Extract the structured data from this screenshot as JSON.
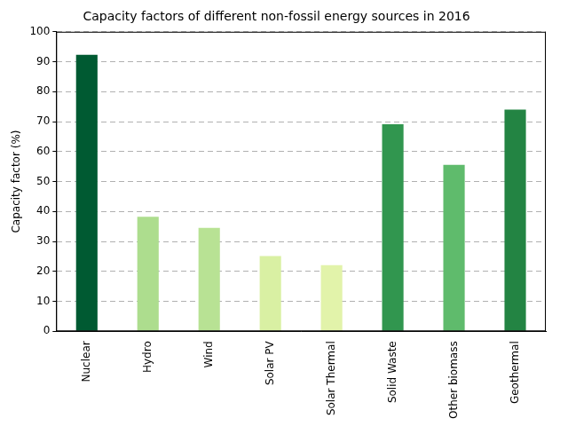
{
  "chart_data": {
    "type": "bar",
    "title": "Capacity factors of different non-fossil energy sources in 2016",
    "y_label": "Capacity factor (%)",
    "categories": [
      "Nuclear",
      "Hydro",
      "Wind",
      "Solar PV",
      "Solar Thermal",
      "Solid Waste",
      "Other biomass",
      "Geothermal"
    ],
    "values": [
      92.3,
      38.2,
      34.5,
      25.1,
      22.1,
      69.1,
      55.6,
      74.0
    ],
    "colors": [
      "#005a32",
      "#addd8e",
      "#b8e294",
      "#d9f0a3",
      "#e2f3aa",
      "#31964f",
      "#5fbb6c",
      "#238443"
    ],
    "ylim": [
      0,
      100
    ],
    "yticks": [
      0,
      10,
      20,
      30,
      40,
      50,
      60,
      70,
      80,
      90,
      100
    ],
    "grid": true
  }
}
